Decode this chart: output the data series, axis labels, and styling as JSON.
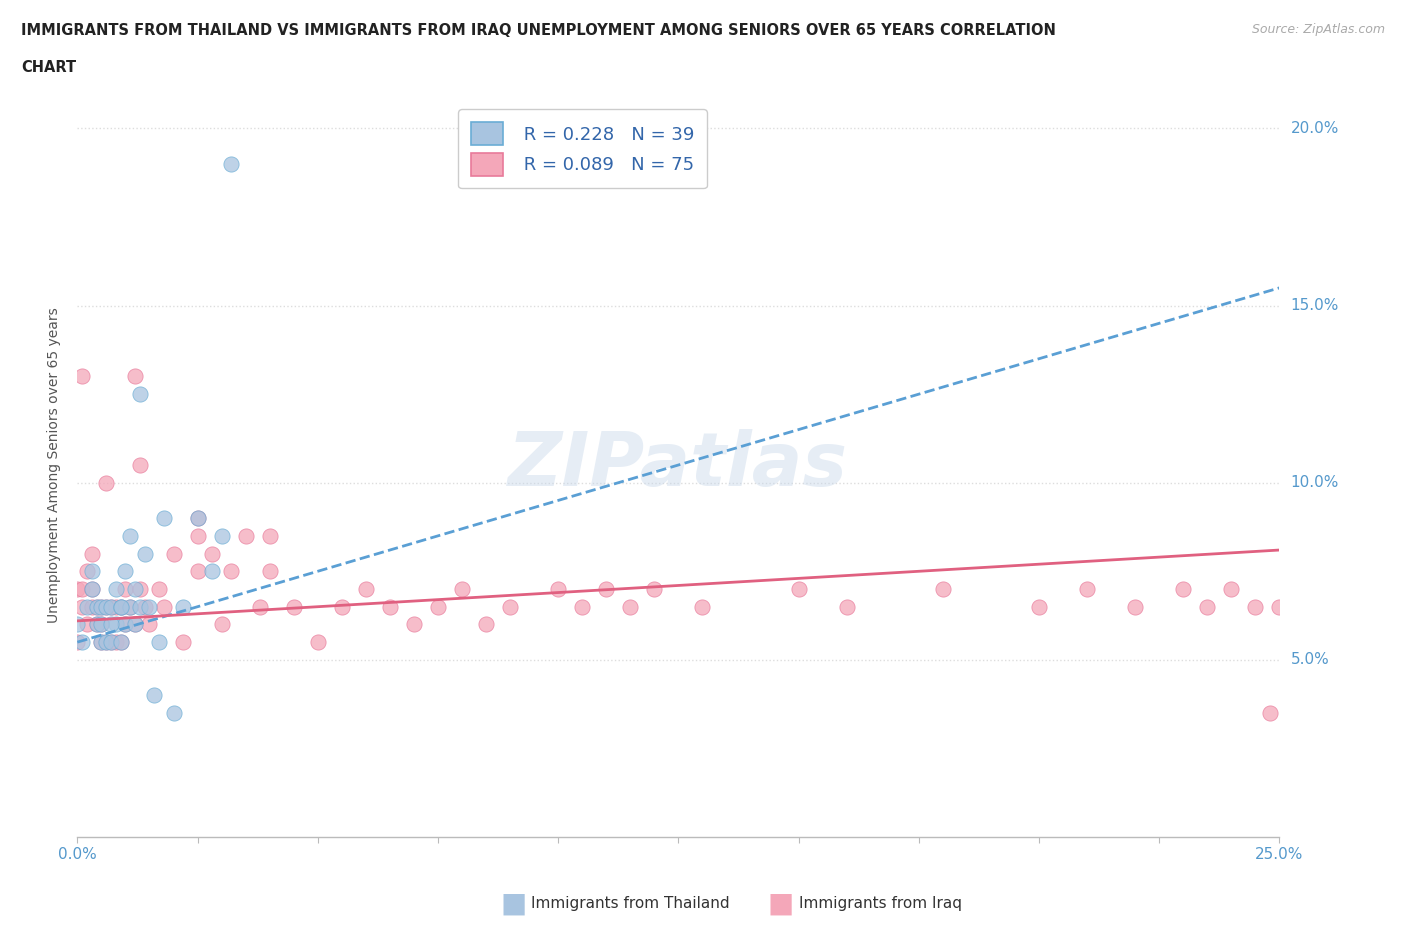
{
  "title_line1": "IMMIGRANTS FROM THAILAND VS IMMIGRANTS FROM IRAQ UNEMPLOYMENT AMONG SENIORS OVER 65 YEARS CORRELATION",
  "title_line2": "CHART",
  "source_text": "Source: ZipAtlas.com",
  "ylabel": "Unemployment Among Seniors over 65 years",
  "xlim": [
    0.0,
    0.25
  ],
  "ylim": [
    0.0,
    0.21
  ],
  "xticks": [
    0.0,
    0.025,
    0.05,
    0.075,
    0.1,
    0.125,
    0.15,
    0.175,
    0.2,
    0.225,
    0.25
  ],
  "ytick_positions": [
    0.05,
    0.1,
    0.15,
    0.2
  ],
  "yticklabels": [
    "5.0%",
    "10.0%",
    "15.0%",
    "20.0%"
  ],
  "legend_r1": "R = 0.228",
  "legend_n1": "N = 39",
  "legend_r2": "R = 0.089",
  "legend_n2": "N = 75",
  "color_thailand": "#a8c4e0",
  "color_iraq": "#f4a7b9",
  "edge_thailand": "#6aadd5",
  "edge_iraq": "#e87a9a",
  "trendline_color_thailand": "#5a9fd4",
  "trendline_color_iraq": "#e06080",
  "watermark_text": "ZIPatlas",
  "background_color": "#ffffff",
  "grid_color": "#dddddd",
  "thailand_scatter_x": [
    0.002,
    0.003,
    0.004,
    0.004,
    0.005,
    0.005,
    0.006,
    0.006,
    0.007,
    0.007,
    0.008,
    0.008,
    0.009,
    0.009,
    0.01,
    0.01,
    0.011,
    0.011,
    0.012,
    0.012,
    0.013,
    0.013,
    0.014,
    0.015,
    0.016,
    0.017,
    0.018,
    0.02,
    0.022,
    0.025,
    0.028,
    0.03,
    0.032,
    0.0,
    0.001,
    0.003,
    0.005,
    0.007,
    0.009
  ],
  "thailand_scatter_y": [
    0.065,
    0.07,
    0.06,
    0.065,
    0.055,
    0.065,
    0.055,
    0.065,
    0.055,
    0.065,
    0.06,
    0.07,
    0.055,
    0.065,
    0.06,
    0.075,
    0.065,
    0.085,
    0.06,
    0.07,
    0.065,
    0.125,
    0.08,
    0.065,
    0.04,
    0.055,
    0.09,
    0.035,
    0.065,
    0.09,
    0.075,
    0.085,
    0.19,
    0.06,
    0.055,
    0.075,
    0.06,
    0.06,
    0.065
  ],
  "iraq_scatter_x": [
    0.0,
    0.0,
    0.001,
    0.001,
    0.002,
    0.002,
    0.003,
    0.003,
    0.004,
    0.004,
    0.005,
    0.005,
    0.005,
    0.006,
    0.006,
    0.007,
    0.007,
    0.008,
    0.008,
    0.009,
    0.009,
    0.01,
    0.01,
    0.011,
    0.012,
    0.012,
    0.013,
    0.013,
    0.014,
    0.015,
    0.017,
    0.018,
    0.02,
    0.022,
    0.025,
    0.025,
    0.028,
    0.03,
    0.032,
    0.035,
    0.038,
    0.04,
    0.04,
    0.045,
    0.05,
    0.055,
    0.06,
    0.065,
    0.07,
    0.075,
    0.08,
    0.085,
    0.09,
    0.1,
    0.105,
    0.11,
    0.115,
    0.12,
    0.13,
    0.15,
    0.16,
    0.18,
    0.2,
    0.21,
    0.22,
    0.23,
    0.235,
    0.24,
    0.245,
    0.248,
    0.25,
    0.001,
    0.003,
    0.006,
    0.025
  ],
  "iraq_scatter_y": [
    0.07,
    0.055,
    0.065,
    0.07,
    0.06,
    0.075,
    0.065,
    0.07,
    0.06,
    0.065,
    0.055,
    0.06,
    0.065,
    0.055,
    0.065,
    0.055,
    0.065,
    0.055,
    0.065,
    0.055,
    0.065,
    0.06,
    0.07,
    0.065,
    0.06,
    0.13,
    0.07,
    0.105,
    0.065,
    0.06,
    0.07,
    0.065,
    0.08,
    0.055,
    0.085,
    0.075,
    0.08,
    0.06,
    0.075,
    0.085,
    0.065,
    0.085,
    0.075,
    0.065,
    0.055,
    0.065,
    0.07,
    0.065,
    0.06,
    0.065,
    0.07,
    0.06,
    0.065,
    0.07,
    0.065,
    0.07,
    0.065,
    0.07,
    0.065,
    0.07,
    0.065,
    0.07,
    0.065,
    0.07,
    0.065,
    0.07,
    0.065,
    0.07,
    0.065,
    0.035,
    0.065,
    0.13,
    0.08,
    0.1,
    0.09
  ],
  "trendline_th_x0": 0.0,
  "trendline_th_x1": 0.25,
  "trendline_th_y0": 0.055,
  "trendline_th_y1": 0.155,
  "trendline_iq_x0": 0.0,
  "trendline_iq_x1": 0.25,
  "trendline_iq_y0": 0.061,
  "trendline_iq_y1": 0.081
}
